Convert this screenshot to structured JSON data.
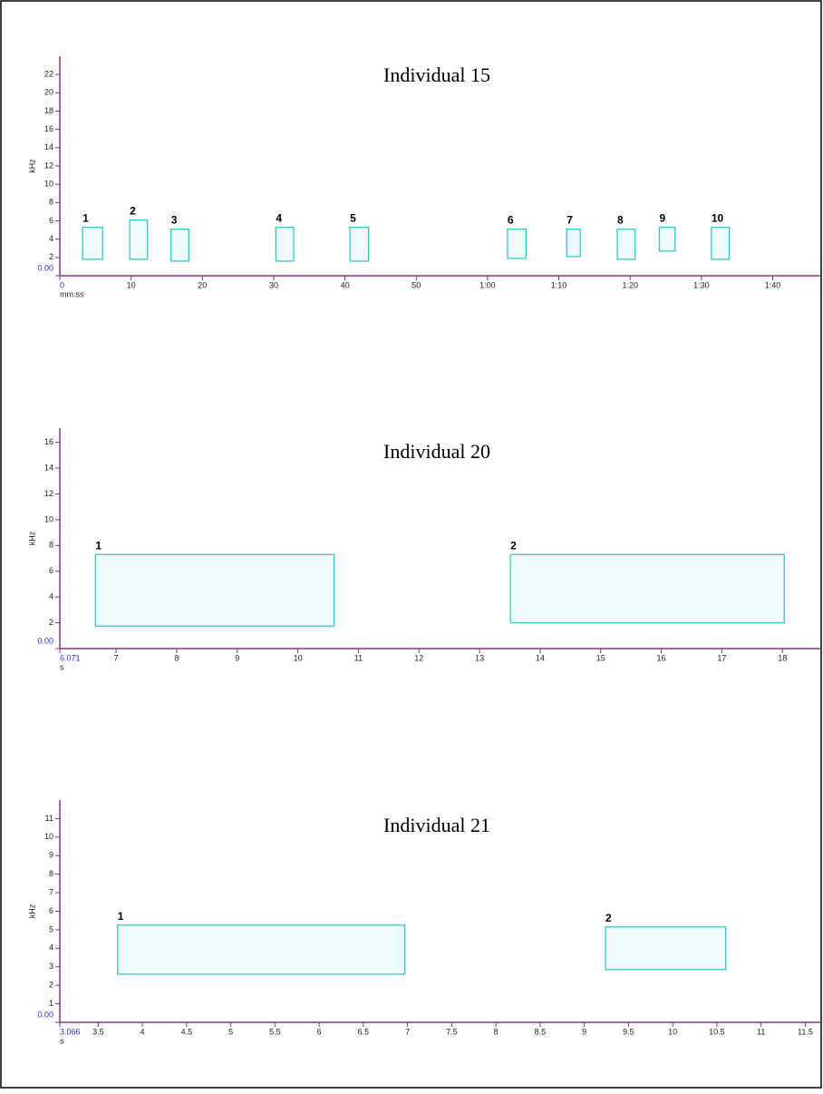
{
  "chart_data": [
    {
      "type": "spectrogram",
      "title": "Individual 15",
      "x_label": "mm:ss",
      "y_label": "kHz",
      "xlim": [
        0,
        106.8
      ],
      "ylim": [
        0,
        24
      ],
      "xticks": [
        0,
        10,
        20,
        30,
        40,
        50,
        {
          "value": 60,
          "label": "1:00"
        },
        {
          "value": 70,
          "label": "1:10"
        },
        {
          "value": 80,
          "label": "1:20"
        },
        {
          "value": 90,
          "label": "1:30"
        },
        {
          "value": 100,
          "label": "1:40"
        }
      ],
      "yticks": [
        {
          "value": 0,
          "label": "0.00"
        },
        2,
        4,
        6,
        8,
        10,
        12,
        14,
        16,
        18,
        20,
        22
      ],
      "selections": [
        {
          "label": "1",
          "x": [
            3.2,
            6.0
          ],
          "y": [
            1.8,
            5.3
          ]
        },
        {
          "label": "2",
          "x": [
            9.8,
            12.3
          ],
          "y": [
            1.8,
            6.1
          ]
        },
        {
          "label": "3",
          "x": [
            15.6,
            18.1
          ],
          "y": [
            1.6,
            5.1
          ]
        },
        {
          "label": "4",
          "x": [
            30.3,
            32.8
          ],
          "y": [
            1.6,
            5.3
          ]
        },
        {
          "label": "5",
          "x": [
            40.7,
            43.3
          ],
          "y": [
            1.6,
            5.3
          ]
        },
        {
          "label": "6",
          "x": [
            62.8,
            65.4
          ],
          "y": [
            1.9,
            5.1
          ]
        },
        {
          "label": "7",
          "x": [
            71.1,
            73.0
          ],
          "y": [
            2.1,
            5.1
          ]
        },
        {
          "label": "8",
          "x": [
            78.2,
            80.7
          ],
          "y": [
            1.8,
            5.1
          ]
        },
        {
          "label": "9",
          "x": [
            84.1,
            86.3
          ],
          "y": [
            2.7,
            5.3
          ]
        },
        {
          "label": "10",
          "x": [
            91.4,
            93.9
          ],
          "y": [
            1.8,
            5.3
          ]
        }
      ]
    },
    {
      "type": "spectrogram",
      "title": "Individual 20",
      "x_label": "s",
      "y_label": "kHz",
      "xlim": [
        6.071,
        18.64
      ],
      "ylim": [
        0,
        17.1
      ],
      "xticks": [
        6.071,
        7,
        8,
        9,
        10,
        11,
        12,
        13,
        14,
        15,
        16,
        17,
        18
      ],
      "yticks": [
        {
          "value": 0,
          "label": "0.00"
        },
        2,
        4,
        6,
        8,
        10,
        12,
        14,
        16
      ],
      "selections": [
        {
          "label": "1",
          "x": [
            6.66,
            10.6
          ],
          "y": [
            1.75,
            7.3
          ]
        },
        {
          "label": "2",
          "x": [
            13.51,
            18.03
          ],
          "y": [
            2.0,
            7.3
          ]
        }
      ]
    },
    {
      "type": "spectrogram",
      "title": "Individual 21",
      "x_label": "s",
      "y_label": "kHz",
      "xlim": [
        3.066,
        11.68
      ],
      "ylim": [
        0,
        12
      ],
      "xticks": [
        3.066,
        3.5,
        4,
        4.5,
        5,
        5.5,
        6,
        6.5,
        7,
        7.5,
        8,
        8.5,
        9,
        9.5,
        10,
        10.5,
        11,
        11.5
      ],
      "yticks": [
        {
          "value": 0,
          "label": "0.00"
        },
        1,
        2,
        3,
        4,
        5,
        6,
        7,
        8,
        9,
        10,
        11
      ],
      "selections": [
        {
          "label": "1",
          "x": [
            3.72,
            6.97
          ],
          "y": [
            2.6,
            5.25
          ]
        },
        {
          "label": "2",
          "x": [
            9.24,
            10.6
          ],
          "y": [
            2.85,
            5.15
          ]
        }
      ]
    }
  ]
}
